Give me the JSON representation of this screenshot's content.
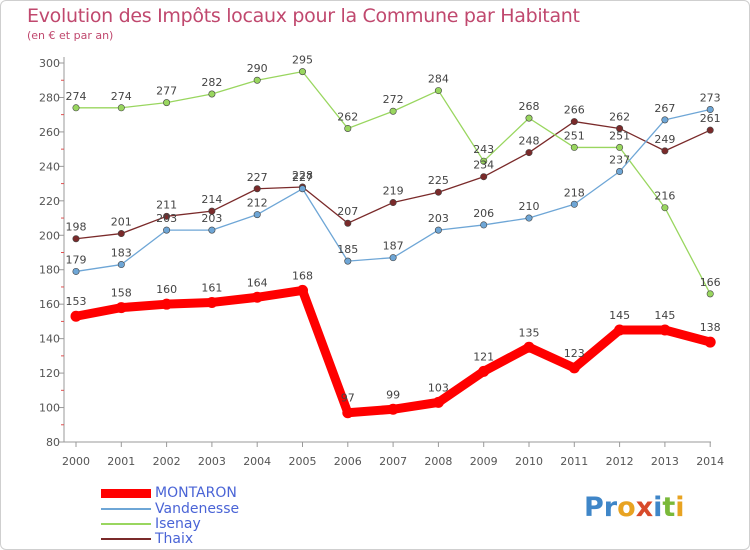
{
  "chart_data": {
    "type": "line",
    "title": "Evolution des Impôts locaux pour la Commune par Habitant",
    "subtitle": "(en € et par an)",
    "xlabel": "",
    "ylabel": "",
    "ylim": [
      80,
      300
    ],
    "yticks": [
      80,
      100,
      120,
      140,
      160,
      180,
      200,
      220,
      240,
      260,
      280,
      300
    ],
    "categories": [
      "2000",
      "2001",
      "2002",
      "2003",
      "2004",
      "2005",
      "2006",
      "2007",
      "2008",
      "2009",
      "2010",
      "2011",
      "2012",
      "2013",
      "2014"
    ],
    "series": [
      {
        "name": "MONTARON",
        "color": "#ff0000",
        "values": [
          153,
          158,
          160,
          161,
          164,
          168,
          97,
          99,
          103,
          121,
          135,
          123,
          145,
          145,
          138
        ],
        "labels": [
          "153",
          "158",
          "160",
          "161",
          "164",
          "168",
          "97",
          "99",
          "103",
          "121",
          "135",
          "123",
          "145",
          "145",
          "138"
        ]
      },
      {
        "name": "Vandenesse",
        "color": "#6ea6d6",
        "values": [
          179,
          183,
          203,
          203,
          212,
          227,
          185,
          187,
          203,
          206,
          210,
          218,
          237,
          267,
          273
        ],
        "labels": [
          "179",
          "183",
          "203",
          "203",
          "212",
          "227",
          "185",
          "187",
          "203",
          "206",
          "210",
          "218",
          "237",
          "267",
          "273"
        ]
      },
      {
        "name": "Isenay",
        "color": "#99d65f",
        "values": [
          274,
          274,
          277,
          282,
          290,
          295,
          262,
          272,
          284,
          243,
          268,
          251,
          251,
          216,
          166
        ],
        "labels": [
          "274",
          "274",
          "277",
          "282",
          "290",
          "295",
          "262",
          "272",
          "284",
          "243",
          "268",
          "251",
          "251",
          "216",
          "166"
        ]
      },
      {
        "name": "Thaix",
        "color": "#7a2a2a",
        "values": [
          198,
          201,
          211,
          214,
          227,
          228,
          207,
          219,
          225,
          234,
          248,
          266,
          262,
          249,
          261
        ],
        "labels": [
          "198",
          "201",
          "211",
          "214",
          "227",
          "228",
          "207",
          "219",
          "225",
          "234",
          "248",
          "266",
          "262",
          "249",
          "261"
        ]
      }
    ],
    "grid": false,
    "legend_position": "bottom-left"
  },
  "logo": {
    "text": "Proxiti",
    "letters": [
      "P",
      "r",
      "o",
      "x",
      "i",
      "t",
      "i"
    ],
    "colors": [
      "#3f86c8",
      "#3f86c8",
      "#e8a321",
      "#d84a2a",
      "#3f86c8",
      "#7ab93a",
      "#e8a321"
    ]
  }
}
